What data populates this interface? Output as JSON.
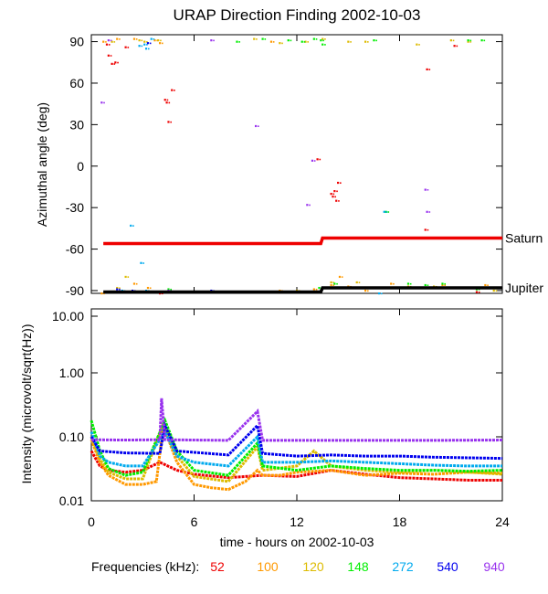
{
  "title": "URAP Direction Finding  2002-10-03",
  "xlabel": "time - hours on 2002-10-03",
  "x_ticks": [
    "0",
    "6",
    "12",
    "18",
    "24"
  ],
  "freq_legend": {
    "label": "Frequencies (kHz):",
    "items": [
      {
        "label": "52",
        "color": "#ee0000"
      },
      {
        "label": "100",
        "color": "#ff9900"
      },
      {
        "label": "120",
        "color": "#ddbb00"
      },
      {
        "label": "148",
        "color": "#00ee00"
      },
      {
        "label": "272",
        "color": "#00aaee"
      },
      {
        "label": "540",
        "color": "#0000ee"
      },
      {
        "label": "940",
        "color": "#9933ee"
      }
    ]
  },
  "chart_data": [
    {
      "type": "scatter",
      "ylabel": "Azimuthal angle (deg)",
      "xlim": [
        0,
        24
      ],
      "ylim": [
        -92,
        95
      ],
      "y_ticks": [
        "90",
        "60",
        "30",
        "0",
        "-30",
        "-60",
        "-90"
      ],
      "reference_lines": [
        {
          "name": "Saturn",
          "color": "#ee0000",
          "points": [
            [
              0.7,
              -56
            ],
            [
              13.4,
              -56
            ],
            [
              13.5,
              -52
            ],
            [
              24,
              -52
            ]
          ]
        },
        {
          "name": "Jupiter",
          "color": "#000000",
          "points": [
            [
              0.7,
              -91
            ],
            [
              13.4,
              -91
            ],
            [
              13.5,
              -88
            ],
            [
              24,
              -88
            ]
          ]
        }
      ],
      "series": [
        {
          "label": "52",
          "points": [
            [
              0.9,
              88
            ],
            [
              1.0,
              80
            ],
            [
              1.2,
              74
            ],
            [
              1.4,
              75
            ],
            [
              2.0,
              86
            ],
            [
              4.3,
              48
            ],
            [
              4.4,
              46
            ],
            [
              4.7,
              55
            ],
            [
              4.5,
              32
            ],
            [
              4.0,
              -92
            ],
            [
              3.5,
              -91
            ],
            [
              13.2,
              5
            ],
            [
              14.0,
              -20
            ],
            [
              14.1,
              -22
            ],
            [
              14.2,
              -18
            ],
            [
              14.3,
              -25
            ],
            [
              14.4,
              -12
            ],
            [
              19.5,
              -46
            ],
            [
              19.6,
              70
            ],
            [
              21.2,
              87
            ],
            [
              22.5,
              -91
            ]
          ]
        },
        {
          "label": "100",
          "points": [
            [
              0.7,
              90
            ],
            [
              1.5,
              92
            ],
            [
              2.5,
              92
            ],
            [
              3.7,
              91
            ],
            [
              4.0,
              89
            ],
            [
              10.5,
              90
            ],
            [
              11.0,
              -90
            ],
            [
              12.0,
              -91
            ],
            [
              13.0,
              -89
            ],
            [
              14.0,
              -86
            ],
            [
              14.5,
              -80
            ],
            [
              15.0,
              -87
            ],
            [
              16.0,
              -90
            ],
            [
              17.5,
              -85
            ],
            [
              19.0,
              -88
            ],
            [
              20.5,
              -86
            ],
            [
              22.0,
              -88
            ],
            [
              23.0,
              -86
            ],
            [
              2.5,
              -85
            ],
            [
              3.3,
              -88
            ],
            [
              0.6,
              -92
            ]
          ]
        },
        {
          "label": "120",
          "points": [
            [
              1.2,
              90
            ],
            [
              2.8,
              91
            ],
            [
              3.1,
              90
            ],
            [
              3.9,
              91
            ],
            [
              9.5,
              92
            ],
            [
              11.0,
              89
            ],
            [
              12.5,
              90
            ],
            [
              13.5,
              92
            ],
            [
              15.0,
              90
            ],
            [
              16.0,
              90
            ],
            [
              19.0,
              88
            ],
            [
              21.0,
              91
            ],
            [
              22.0,
              90
            ],
            [
              10.0,
              -91
            ],
            [
              12.0,
              -90
            ],
            [
              14.0,
              -84
            ],
            [
              15.5,
              -84
            ],
            [
              17.0,
              -88
            ],
            [
              18.5,
              -87
            ],
            [
              20.0,
              -87
            ],
            [
              23.5,
              -90
            ],
            [
              2.0,
              -80
            ],
            [
              1.5,
              -88
            ]
          ]
        },
        {
          "label": "148",
          "points": [
            [
              8.5,
              90
            ],
            [
              10.0,
              92
            ],
            [
              11.5,
              91
            ],
            [
              12.3,
              90
            ],
            [
              13.0,
              92
            ],
            [
              13.4,
              91
            ],
            [
              13.5,
              88
            ],
            [
              16.5,
              91
            ],
            [
              22.0,
              91
            ],
            [
              22.8,
              91
            ],
            [
              11.0,
              -91
            ],
            [
              12.5,
              -91
            ],
            [
              13.3,
              -88
            ],
            [
              14.2,
              -85
            ],
            [
              15.0,
              -88
            ],
            [
              16.0,
              -88
            ],
            [
              18.5,
              -85
            ],
            [
              19.5,
              -86
            ],
            [
              20.5,
              -85
            ],
            [
              21.5,
              -88
            ],
            [
              22.5,
              -89
            ],
            [
              23.5,
              -88
            ],
            [
              17.2,
              -33
            ],
            [
              4.5,
              -89
            ]
          ]
        },
        {
          "label": "272",
          "points": [
            [
              2.8,
              87
            ],
            [
              3.1,
              88
            ],
            [
              3.2,
              85
            ],
            [
              3.5,
              92
            ],
            [
              2.3,
              -43
            ],
            [
              1.8,
              -90
            ],
            [
              3.2,
              -90
            ],
            [
              3.5,
              -91
            ],
            [
              9.0,
              -91
            ],
            [
              16.8,
              -92
            ],
            [
              2.9,
              -70
            ],
            [
              17.1,
              -33
            ]
          ]
        },
        {
          "label": "540",
          "points": [
            [
              3.3,
              89
            ],
            [
              2.4,
              -90
            ],
            [
              1.5,
              -89
            ],
            [
              7.0,
              -90
            ],
            [
              12.0,
              -91
            ]
          ]
        },
        {
          "label": "940",
          "points": [
            [
              0.6,
              46
            ],
            [
              7.0,
              91
            ],
            [
              9.6,
              29
            ],
            [
              12.9,
              4
            ],
            [
              12.6,
              -28
            ],
            [
              19.5,
              -17
            ],
            [
              19.6,
              -33
            ],
            [
              1.0,
              91
            ],
            [
              4.5,
              -90
            ]
          ]
        }
      ]
    },
    {
      "type": "line",
      "ylabel": "Intensity (microvolt/sqrt(Hz))",
      "xlim": [
        0,
        24
      ],
      "ylim": [
        0.01,
        10
      ],
      "yscale": "log",
      "y_ticks": [
        "10.00",
        "1.00",
        "0.10",
        "0.01"
      ],
      "series": [
        {
          "label": "52",
          "points": [
            [
              0,
              0.06
            ],
            [
              0.5,
              0.035
            ],
            [
              1,
              0.03
            ],
            [
              2,
              0.028
            ],
            [
              3,
              0.03
            ],
            [
              4,
              0.04
            ],
            [
              5,
              0.03
            ],
            [
              6,
              0.026
            ],
            [
              8,
              0.023
            ],
            [
              10,
              0.025
            ],
            [
              12,
              0.024
            ],
            [
              14,
              0.03
            ],
            [
              16,
              0.026
            ],
            [
              18,
              0.023
            ],
            [
              20,
              0.022
            ],
            [
              22,
              0.021
            ],
            [
              24,
              0.021
            ]
          ]
        },
        {
          "label": "100",
          "points": [
            [
              0,
              0.09
            ],
            [
              0.5,
              0.04
            ],
            [
              1,
              0.025
            ],
            [
              2,
              0.018
            ],
            [
              3,
              0.018
            ],
            [
              3.8,
              0.02
            ],
            [
              4.2,
              0.15
            ],
            [
              5,
              0.04
            ],
            [
              6,
              0.018
            ],
            [
              7,
              0.016
            ],
            [
              8,
              0.015
            ],
            [
              9,
              0.02
            ],
            [
              9.7,
              0.03
            ],
            [
              10,
              0.025
            ],
            [
              11,
              0.025
            ],
            [
              12,
              0.028
            ],
            [
              14,
              0.03
            ],
            [
              16,
              0.025
            ],
            [
              18,
              0.027
            ],
            [
              20,
              0.026
            ],
            [
              22,
              0.028
            ],
            [
              24,
              0.027
            ]
          ]
        },
        {
          "label": "120",
          "points": [
            [
              0,
              0.1
            ],
            [
              0.5,
              0.045
            ],
            [
              1,
              0.028
            ],
            [
              2,
              0.022
            ],
            [
              3,
              0.022
            ],
            [
              4.2,
              0.16
            ],
            [
              5,
              0.05
            ],
            [
              6,
              0.024
            ],
            [
              8,
              0.02
            ],
            [
              9.7,
              0.07
            ],
            [
              10,
              0.03
            ],
            [
              12,
              0.035
            ],
            [
              13,
              0.06
            ],
            [
              14,
              0.035
            ],
            [
              16,
              0.03
            ],
            [
              18,
              0.028
            ],
            [
              20,
              0.03
            ],
            [
              22,
              0.028
            ],
            [
              24,
              0.026
            ]
          ]
        },
        {
          "label": "148",
          "points": [
            [
              0,
              0.18
            ],
            [
              0.5,
              0.06
            ],
            [
              1,
              0.032
            ],
            [
              2,
              0.025
            ],
            [
              3,
              0.028
            ],
            [
              4.3,
              0.18
            ],
            [
              5,
              0.06
            ],
            [
              6,
              0.03
            ],
            [
              8,
              0.025
            ],
            [
              9.7,
              0.08
            ],
            [
              10,
              0.035
            ],
            [
              12,
              0.03
            ],
            [
              14,
              0.035
            ],
            [
              16,
              0.032
            ],
            [
              18,
              0.03
            ],
            [
              20,
              0.03
            ],
            [
              22,
              0.029
            ],
            [
              24,
              0.03
            ]
          ]
        },
        {
          "label": "272",
          "points": [
            [
              0,
              0.12
            ],
            [
              0.5,
              0.05
            ],
            [
              1,
              0.04
            ],
            [
              2,
              0.035
            ],
            [
              3,
              0.035
            ],
            [
              4.3,
              0.12
            ],
            [
              5,
              0.05
            ],
            [
              6,
              0.04
            ],
            [
              8,
              0.035
            ],
            [
              9.7,
              0.1
            ],
            [
              10,
              0.04
            ],
            [
              12,
              0.04
            ],
            [
              14,
              0.042
            ],
            [
              16,
              0.04
            ],
            [
              18,
              0.038
            ],
            [
              20,
              0.036
            ],
            [
              22,
              0.035
            ],
            [
              24,
              0.035
            ]
          ]
        },
        {
          "label": "540",
          "points": [
            [
              0,
              0.1
            ],
            [
              0.5,
              0.06
            ],
            [
              2,
              0.056
            ],
            [
              4,
              0.055
            ],
            [
              4.3,
              0.15
            ],
            [
              5,
              0.06
            ],
            [
              8,
              0.052
            ],
            [
              9.7,
              0.15
            ],
            [
              10,
              0.055
            ],
            [
              12,
              0.05
            ],
            [
              14,
              0.052
            ],
            [
              16,
              0.05
            ],
            [
              18,
              0.05
            ],
            [
              20,
              0.048
            ],
            [
              22,
              0.047
            ],
            [
              24,
              0.046
            ]
          ]
        },
        {
          "label": "940",
          "points": [
            [
              0,
              0.09
            ],
            [
              2,
              0.089
            ],
            [
              4,
              0.09
            ],
            [
              4.1,
              0.4
            ],
            [
              4.3,
              0.09
            ],
            [
              8,
              0.088
            ],
            [
              9.7,
              0.25
            ],
            [
              10,
              0.088
            ],
            [
              12,
              0.088
            ],
            [
              16,
              0.088
            ],
            [
              20,
              0.088
            ],
            [
              24,
              0.089
            ]
          ]
        }
      ]
    }
  ]
}
